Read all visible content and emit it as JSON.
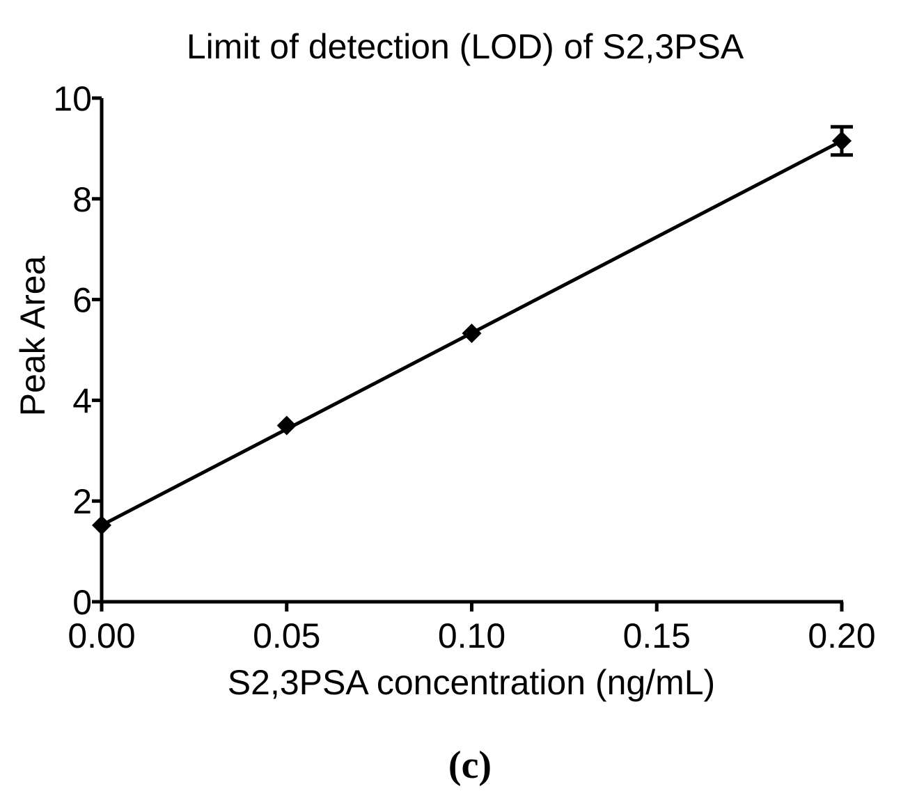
{
  "chart_data": {
    "type": "line",
    "title": "Limit of detection (LOD) of S2,3PSA",
    "xlabel": "S2,3PSA concentration (ng/mL)",
    "ylabel": "Peak Area",
    "panel_label": "(c)",
    "xlim": [
      0,
      0.2
    ],
    "ylim": [
      0,
      10
    ],
    "x_ticks": [
      "0.00",
      "0.05",
      "0.10",
      "0.15",
      "0.20"
    ],
    "x_tick_values": [
      0,
      0.05,
      0.1,
      0.15,
      0.2
    ],
    "y_ticks": [
      "0",
      "2",
      "4",
      "6",
      "8",
      "10"
    ],
    "y_tick_values": [
      0,
      2,
      4,
      6,
      8,
      10
    ],
    "grid": false,
    "series": [
      {
        "marker": "diamond",
        "x": [
          0,
          0.05,
          0.1,
          0.2
        ],
        "y": [
          1.52,
          3.5,
          5.33,
          9.15
        ],
        "error": [
          0,
          0,
          0,
          0.28
        ]
      }
    ],
    "fit_line": {
      "x": [
        0,
        0.2
      ],
      "y": [
        1.52,
        9.15
      ]
    },
    "colors": {
      "ink": "#000000",
      "background": "#ffffff"
    }
  }
}
